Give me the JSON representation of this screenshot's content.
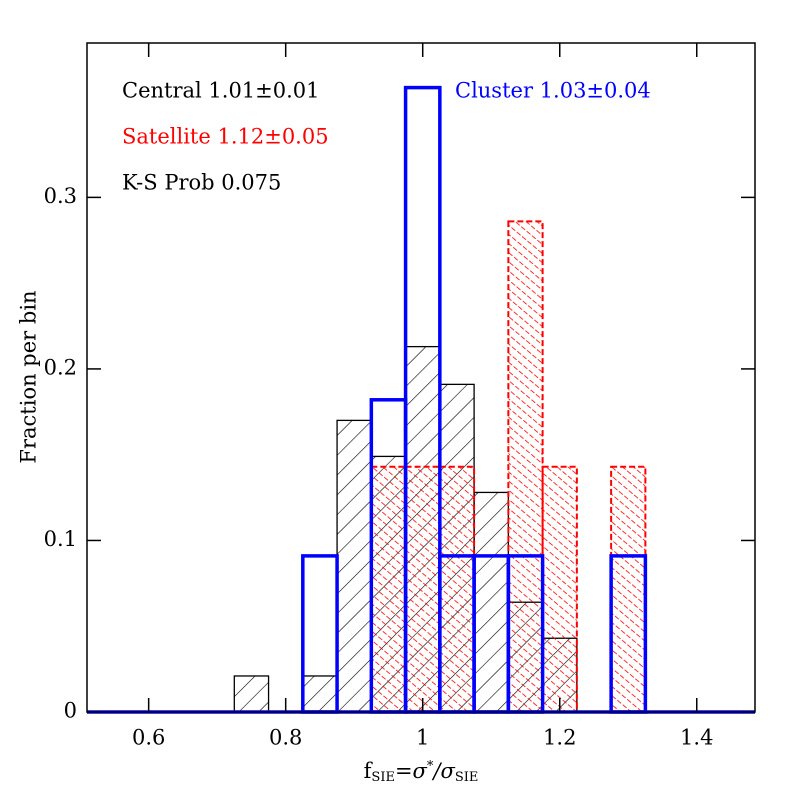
{
  "chart_data": {
    "type": "histogram",
    "xlabel_parts": [
      "f",
      "SIE",
      "=σ",
      "*",
      "/σ",
      "SIE"
    ],
    "ylabel": "Fraction per bin",
    "annotation": "K-S Prob 0.075",
    "bins": [
      0.725,
      0.775,
      0.825,
      0.875,
      0.925,
      0.975,
      1.025,
      1.075,
      1.125,
      1.175,
      1.225,
      1.275,
      1.325
    ],
    "series": [
      {
        "name": "Central 1.01±0.01",
        "color": "#000000",
        "style": "hatch",
        "values": [
          0.021,
          0,
          0.021,
          0.17,
          0.149,
          0.213,
          0.191,
          0.128,
          0.064,
          0.043,
          0,
          0
        ]
      },
      {
        "name": "Satellite 1.12±0.05",
        "color": "#ff0000",
        "style": "dashed-hatch",
        "values": [
          0,
          0,
          0,
          0,
          0.143,
          0.143,
          0.143,
          0,
          0.286,
          0.143,
          0,
          0.143
        ]
      },
      {
        "name": "Cluster 1.03±0.04",
        "color": "#0000ff",
        "style": "outline",
        "values": [
          0,
          0,
          0.091,
          0,
          0.182,
          0.364,
          0.091,
          0.091,
          0.091,
          0,
          0,
          0.091
        ]
      }
    ],
    "xlim": [
      0.51,
      1.485
    ],
    "ylim": [
      0,
      0.39
    ],
    "xticks": [
      0.6,
      0.8,
      1,
      1.2,
      1.4
    ],
    "yticks": [
      0,
      0.1,
      0.2,
      0.3
    ]
  }
}
